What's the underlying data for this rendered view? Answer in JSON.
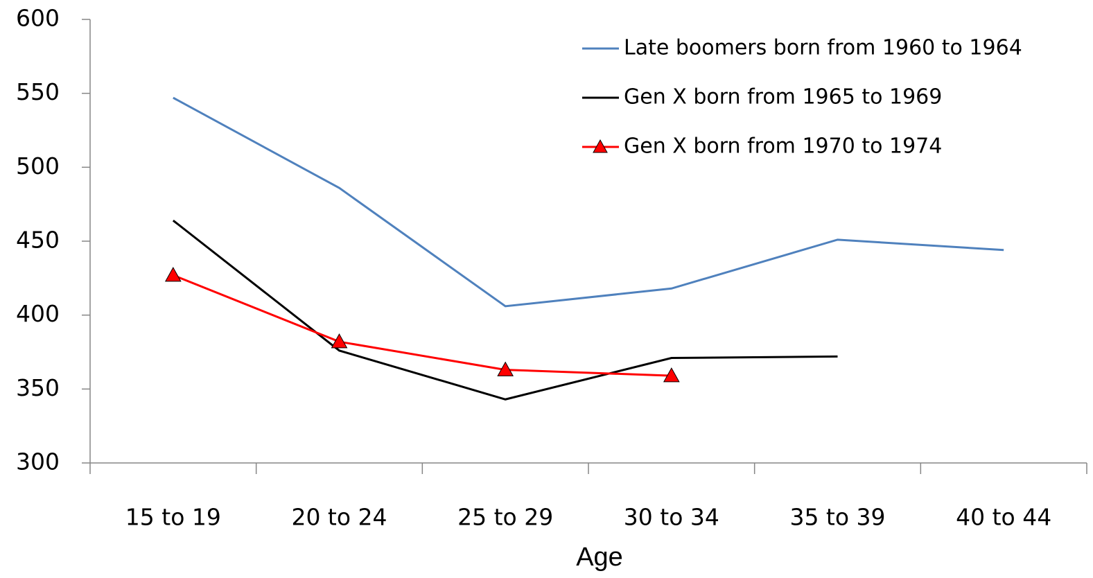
{
  "chart_data": {
    "type": "line",
    "x_label": "Age",
    "categories": [
      "15 to 19",
      "20 to 24",
      "25 to 29",
      "30 to 34",
      "35 to 39",
      "40 to 44"
    ],
    "series": [
      {
        "name": "Late boomers born from 1960 to 1964",
        "color": "#4f81bd",
        "values": [
          547,
          486,
          406,
          418,
          451,
          444
        ]
      },
      {
        "name": "Gen X born from 1965 to 1969",
        "color": "#000000",
        "values": [
          464,
          376,
          343,
          371,
          372,
          null
        ]
      },
      {
        "name": "Gen X born from 1970 to 1974",
        "color": "#ff0000",
        "marker": "triangle",
        "values": [
          427,
          382,
          363,
          359,
          null,
          null
        ]
      }
    ],
    "ylim": [
      300,
      600
    ],
    "yticks": [
      300,
      350,
      400,
      450,
      500,
      550,
      600
    ],
    "grid": false,
    "legend": "top-right"
  }
}
